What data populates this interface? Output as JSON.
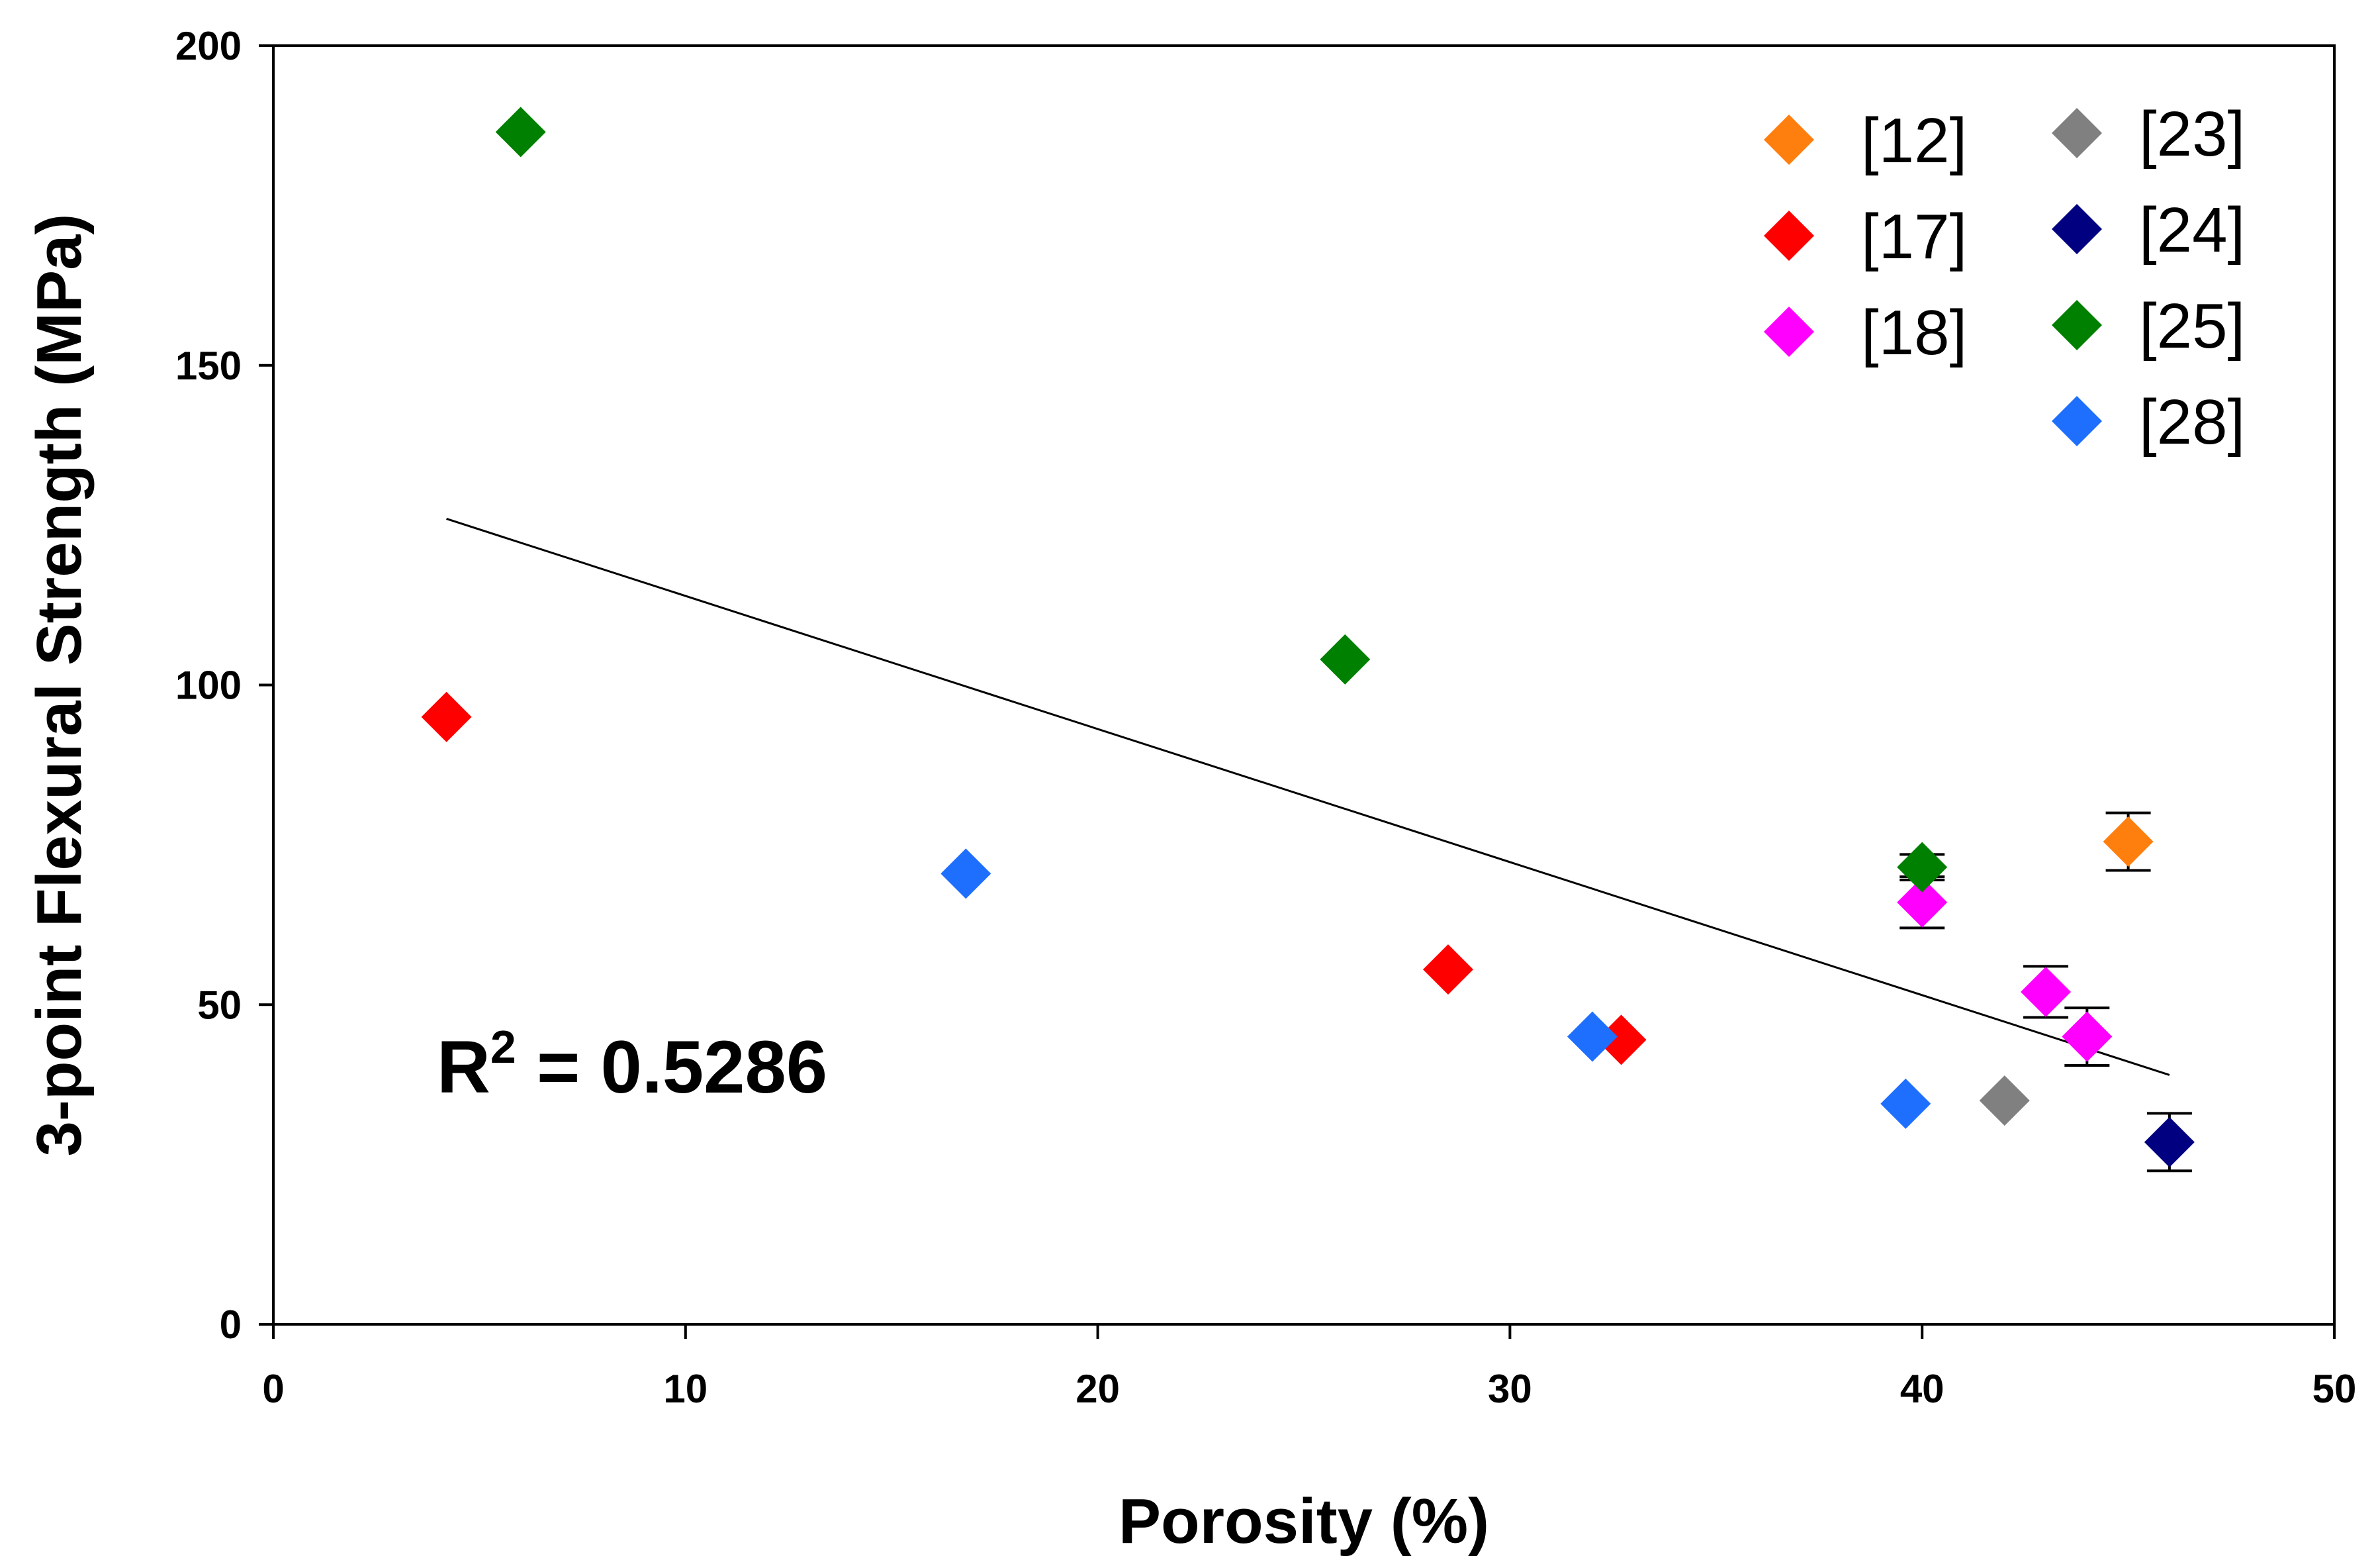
{
  "chart_data": {
    "type": "scatter",
    "title": "",
    "xlabel": "Porosity (%)",
    "ylabel": "3-point Flexural Strength (MPa)",
    "xlim": [
      0,
      50
    ],
    "ylim": [
      0,
      200
    ],
    "xticks": [
      0,
      10,
      20,
      30,
      40,
      50
    ],
    "yticks": [
      0,
      50,
      100,
      150,
      200
    ],
    "grid": false,
    "legend_position": "top-right",
    "series": [
      {
        "name": "[12]",
        "color": "#ff7f0e",
        "points": [
          {
            "x": 45,
            "y": 75.5,
            "err": 4.5
          }
        ]
      },
      {
        "name": "[17]",
        "color": "#ff0000",
        "points": [
          {
            "x": 4.2,
            "y": 95
          },
          {
            "x": 28.5,
            "y": 55.5
          },
          {
            "x": 32.7,
            "y": 44.5
          }
        ]
      },
      {
        "name": "[18]",
        "color": "#ff00ff",
        "points": [
          {
            "x": 40,
            "y": 66,
            "err": 4
          },
          {
            "x": 43,
            "y": 52,
            "err": 4
          },
          {
            "x": 44,
            "y": 45,
            "err": 4.5
          }
        ]
      },
      {
        "name": "[23]",
        "color": "#808080",
        "points": [
          {
            "x": 42,
            "y": 35
          }
        ]
      },
      {
        "name": "[24]",
        "color": "#000080",
        "points": [
          {
            "x": 46,
            "y": 28.5,
            "err": 4.5
          }
        ]
      },
      {
        "name": "[25]",
        "color": "#008000",
        "points": [
          {
            "x": 6,
            "y": 186.5
          },
          {
            "x": 26,
            "y": 104
          },
          {
            "x": 40,
            "y": 71.5,
            "err": 2
          }
        ]
      },
      {
        "name": "[28]",
        "color": "#1f6fff",
        "points": [
          {
            "x": 16.8,
            "y": 70.5
          },
          {
            "x": 32,
            "y": 45
          },
          {
            "x": 39.6,
            "y": 34.5
          }
        ]
      }
    ],
    "trendline": {
      "x": [
        4.2,
        46
      ],
      "y": [
        126,
        39
      ]
    },
    "annotation": {
      "base": "R",
      "sup": "2",
      "rest": " = 0.5286",
      "x": 4,
      "y": 40
    }
  }
}
